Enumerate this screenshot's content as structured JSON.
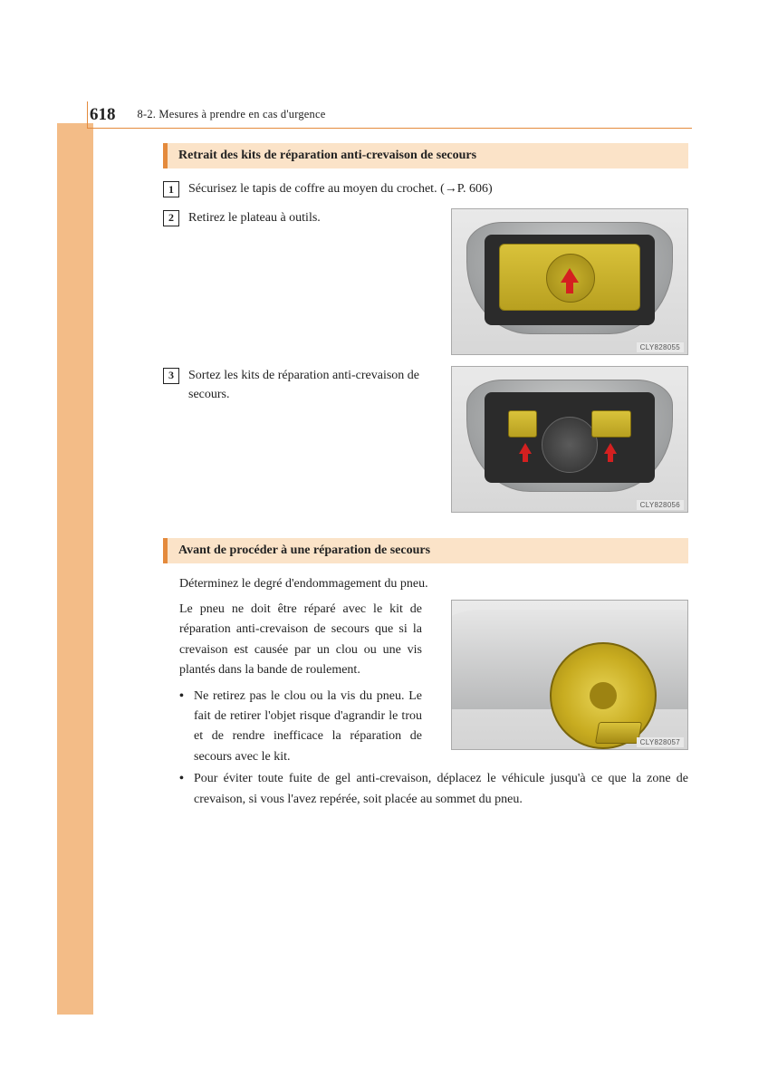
{
  "page": {
    "number": "618",
    "section_path": "8-2. Mesures à prendre en cas d'urgence"
  },
  "section1": {
    "heading": "Retrait des kits de réparation anti-crevaison de secours",
    "steps": [
      {
        "num": "1",
        "text": "Sécurisez le tapis de coffre au moyen du crochet. (→P. 606)"
      },
      {
        "num": "2",
        "text": "Retirez le plateau à outils."
      },
      {
        "num": "3",
        "text": "Sortez les kits de réparation anti-crevaison de secours."
      }
    ],
    "img_codes": [
      "CLY828055",
      "CLY828056"
    ]
  },
  "section2": {
    "heading": "Avant de procéder à une réparation de secours",
    "intro": "Déterminez le degré d'endommagement du pneu.",
    "body": "Le pneu ne doit être réparé avec le kit de réparation anti-crevaison de secours que si la crevaison est causée par un clou ou une vis plantés dans la bande de roulement.",
    "bullets": [
      "Ne retirez pas le clou ou la vis du pneu. Le fait de retirer l'objet risque d'agrandir le trou et de rendre inefficace la réparation de secours avec le kit.",
      "Pour éviter toute fuite de gel anti-crevaison, déplacez le véhicule jusqu'à ce que la zone de crevaison, si vous l'avez repérée, soit placée au sommet du pneu."
    ],
    "img_code": "CLY828057"
  },
  "colors": {
    "accent": "#e48a3c",
    "heading_bg": "#fbe3c8",
    "sidebar": "#f3bc87",
    "text": "#222222"
  }
}
